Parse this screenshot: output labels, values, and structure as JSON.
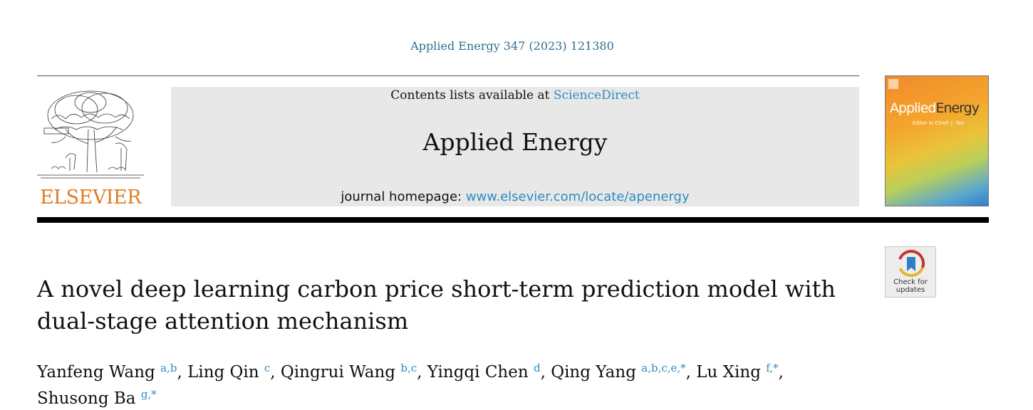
{
  "citation": "Applied Energy 347 (2023) 121380",
  "publisher": {
    "wordmark": "ELSEVIER"
  },
  "banner": {
    "contents_prefix": "Contents lists available at ",
    "contents_link": "ScienceDirect",
    "journal_title": "Applied Energy",
    "homepage_prefix": "journal homepage: ",
    "homepage_link": "www.elsevier.com/locate/apenergy"
  },
  "cover": {
    "title_part1": "Applied",
    "title_part2": "Energy",
    "editor": "Editor in Chief: J. Yan"
  },
  "check_updates": {
    "line1": "Check for",
    "line2": "updates"
  },
  "article": {
    "title_line1": "A novel deep learning carbon price short-term prediction model with",
    "title_line2": "dual-stage attention mechanism"
  },
  "authors": [
    {
      "name": "Yanfeng Wang",
      "aff": "a,b",
      "sep": ", "
    },
    {
      "name": "Ling Qin",
      "aff": "c",
      "sep": ", "
    },
    {
      "name": "Qingrui Wang",
      "aff": "b,c",
      "sep": ", "
    },
    {
      "name": "Yingqi Chen",
      "aff": "d",
      "sep": ", "
    },
    {
      "name": "Qing Yang",
      "aff": "a,b,c,e,*",
      "sep": ", "
    },
    {
      "name": "Lu Xing",
      "aff": "f,*",
      "sep": ","
    },
    {
      "name": "Shusong Ba",
      "aff": "g,*",
      "sep": ""
    }
  ],
  "colors": {
    "link": "#2e8bc0",
    "citation": "#2e6e8e",
    "elsevier_orange": "#e07c22"
  }
}
